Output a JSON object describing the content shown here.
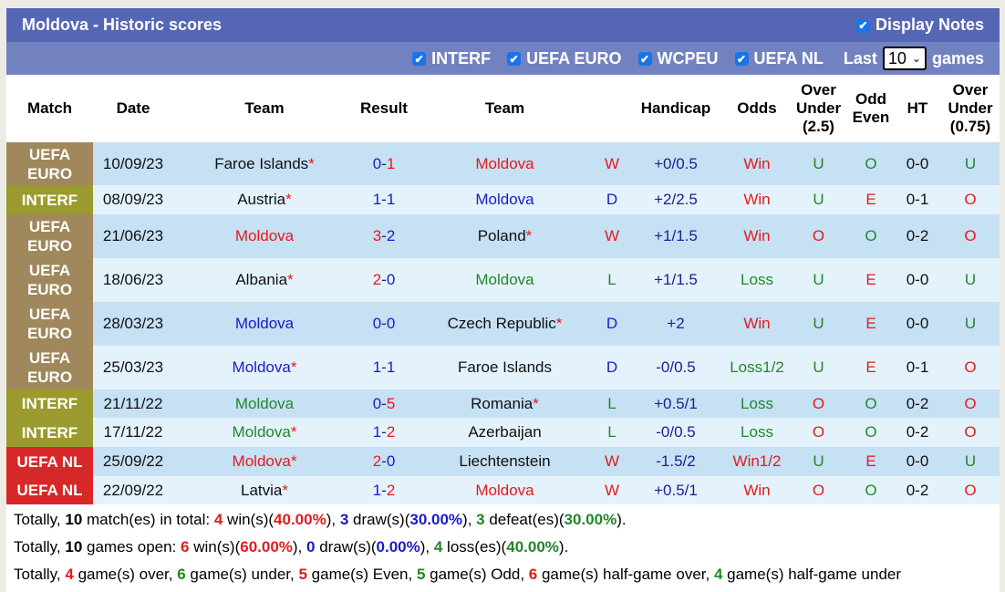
{
  "title": "Moldova - Historic scores",
  "display_notes": "Display Notes",
  "filters": [
    "INTERF",
    "UEFA EURO",
    "WCPEU",
    "UEFA NL"
  ],
  "last_label": "Last",
  "games_label": "games",
  "last_value": "10",
  "colors": {
    "UEFA EURO": "#a0885c",
    "INTERF": "#9a9a2e",
    "UEFA NL": "#d62828",
    "red": "#e41b1b",
    "blue": "#1b1bc8",
    "green": "#23862a"
  },
  "columns": [
    "Match",
    "Date",
    "Team",
    "Result",
    "Team",
    "",
    "Handicap",
    "Odds",
    "Over Under (2.5)",
    "Odd Even",
    "HT",
    "Over Under (0.75)"
  ],
  "rows": [
    {
      "match": "UEFA EURO",
      "date": "10/09/23",
      "home": "Faroe Islands",
      "home_star": true,
      "home_color": "black",
      "hs": "0",
      "hs_c": "blue",
      "as": "1",
      "as_c": "red",
      "away": "Moldova",
      "away_star": false,
      "away_color": "red",
      "wdl": "W",
      "wdl_c": "red",
      "hcp": "+0/0.5",
      "odds": "Win",
      "odds_c": "red",
      "ou": "U",
      "ou_c": "green",
      "oe": "O",
      "oe_c": "green",
      "ht": "0-0",
      "ou2": "U",
      "ou2_c": "green"
    },
    {
      "match": "INTERF",
      "date": "08/09/23",
      "home": "Austria",
      "home_star": true,
      "home_color": "black",
      "hs": "1",
      "hs_c": "blue",
      "as": "1",
      "as_c": "blue",
      "away": "Moldova",
      "away_star": false,
      "away_color": "blue",
      "wdl": "D",
      "wdl_c": "blue",
      "hcp": "+2/2.5",
      "odds": "Win",
      "odds_c": "red",
      "ou": "U",
      "ou_c": "green",
      "oe": "E",
      "oe_c": "red",
      "ht": "0-1",
      "ou2": "O",
      "ou2_c": "red"
    },
    {
      "match": "UEFA EURO",
      "date": "21/06/23",
      "home": "Moldova",
      "home_star": false,
      "home_color": "red",
      "hs": "3",
      "hs_c": "red",
      "as": "2",
      "as_c": "blue",
      "away": "Poland",
      "away_star": true,
      "away_color": "black",
      "wdl": "W",
      "wdl_c": "red",
      "hcp": "+1/1.5",
      "odds": "Win",
      "odds_c": "red",
      "ou": "O",
      "ou_c": "red",
      "oe": "O",
      "oe_c": "green",
      "ht": "0-2",
      "ou2": "O",
      "ou2_c": "red"
    },
    {
      "match": "UEFA EURO",
      "date": "18/06/23",
      "home": "Albania",
      "home_star": true,
      "home_color": "black",
      "hs": "2",
      "hs_c": "red",
      "as": "0",
      "as_c": "blue",
      "away": "Moldova",
      "away_star": false,
      "away_color": "green",
      "wdl": "L",
      "wdl_c": "green",
      "hcp": "+1/1.5",
      "odds": "Loss",
      "odds_c": "green",
      "ou": "U",
      "ou_c": "green",
      "oe": "E",
      "oe_c": "red",
      "ht": "0-0",
      "ou2": "U",
      "ou2_c": "green"
    },
    {
      "match": "UEFA EURO",
      "date": "28/03/23",
      "home": "Moldova",
      "home_star": false,
      "home_color": "blue",
      "hs": "0",
      "hs_c": "blue",
      "as": "0",
      "as_c": "blue",
      "away": "Czech Republic",
      "away_star": true,
      "away_color": "black",
      "wdl": "D",
      "wdl_c": "blue",
      "hcp": "+2",
      "odds": "Win",
      "odds_c": "red",
      "ou": "U",
      "ou_c": "green",
      "oe": "E",
      "oe_c": "red",
      "ht": "0-0",
      "ou2": "U",
      "ou2_c": "green"
    },
    {
      "match": "UEFA EURO",
      "date": "25/03/23",
      "home": "Moldova",
      "home_star": true,
      "home_color": "blue",
      "hs": "1",
      "hs_c": "blue",
      "as": "1",
      "as_c": "blue",
      "away": "Faroe Islands",
      "away_star": false,
      "away_color": "black",
      "wdl": "D",
      "wdl_c": "blue",
      "hcp": "-0/0.5",
      "odds": "Loss1/2",
      "odds_c": "green",
      "ou": "U",
      "ou_c": "green",
      "oe": "E",
      "oe_c": "red",
      "ht": "0-1",
      "ou2": "O",
      "ou2_c": "red"
    },
    {
      "match": "INTERF",
      "date": "21/11/22",
      "home": "Moldova",
      "home_star": false,
      "home_color": "green",
      "hs": "0",
      "hs_c": "blue",
      "as": "5",
      "as_c": "red",
      "away": "Romania",
      "away_star": true,
      "away_color": "black",
      "wdl": "L",
      "wdl_c": "green",
      "hcp": "+0.5/1",
      "odds": "Loss",
      "odds_c": "green",
      "ou": "O",
      "ou_c": "red",
      "oe": "O",
      "oe_c": "green",
      "ht": "0-2",
      "ou2": "O",
      "ou2_c": "red"
    },
    {
      "match": "INTERF",
      "date": "17/11/22",
      "home": "Moldova",
      "home_star": true,
      "home_color": "green",
      "hs": "1",
      "hs_c": "blue",
      "as": "2",
      "as_c": "red",
      "away": "Azerbaijan",
      "away_star": false,
      "away_color": "black",
      "wdl": "L",
      "wdl_c": "green",
      "hcp": "-0/0.5",
      "odds": "Loss",
      "odds_c": "green",
      "ou": "O",
      "ou_c": "red",
      "oe": "O",
      "oe_c": "green",
      "ht": "0-2",
      "ou2": "O",
      "ou2_c": "red"
    },
    {
      "match": "UEFA NL",
      "date": "25/09/22",
      "home": "Moldova",
      "home_star": true,
      "home_color": "red",
      "hs": "2",
      "hs_c": "red",
      "as": "0",
      "as_c": "blue",
      "away": "Liechtenstein",
      "away_star": false,
      "away_color": "black",
      "wdl": "W",
      "wdl_c": "red",
      "hcp": "-1.5/2",
      "odds": "Win1/2",
      "odds_c": "red",
      "ou": "U",
      "ou_c": "green",
      "oe": "E",
      "oe_c": "red",
      "ht": "0-0",
      "ou2": "U",
      "ou2_c": "green"
    },
    {
      "match": "UEFA NL",
      "date": "22/09/22",
      "home": "Latvia",
      "home_star": true,
      "home_color": "black",
      "hs": "1",
      "hs_c": "blue",
      "as": "2",
      "as_c": "red",
      "away": "Moldova",
      "away_star": false,
      "away_color": "red",
      "wdl": "W",
      "wdl_c": "red",
      "hcp": "+0.5/1",
      "odds": "Win",
      "odds_c": "red",
      "ou": "O",
      "ou_c": "red",
      "oe": "O",
      "oe_c": "green",
      "ht": "0-2",
      "ou2": "O",
      "ou2_c": "red"
    }
  ],
  "summary": [
    [
      [
        "Totally, ",
        ""
      ],
      [
        "10",
        "b"
      ],
      [
        " match(es) in total: ",
        ""
      ],
      [
        "4",
        "red"
      ],
      [
        " win(s)(",
        ""
      ],
      [
        "40.00%",
        "red"
      ],
      [
        "), ",
        ""
      ],
      [
        "3",
        "blue"
      ],
      [
        " draw(s)(",
        ""
      ],
      [
        "30.00%",
        "blue"
      ],
      [
        "), ",
        ""
      ],
      [
        "3",
        "green"
      ],
      [
        " defeat(es)(",
        ""
      ],
      [
        "30.00%",
        "green"
      ],
      [
        ").",
        ""
      ]
    ],
    [
      [
        "Totally, ",
        ""
      ],
      [
        "10",
        "b"
      ],
      [
        " games open: ",
        ""
      ],
      [
        "6",
        "red"
      ],
      [
        " win(s)(",
        ""
      ],
      [
        "60.00%",
        "red"
      ],
      [
        "), ",
        ""
      ],
      [
        "0",
        "blue"
      ],
      [
        " draw(s)(",
        ""
      ],
      [
        "0.00%",
        "blue"
      ],
      [
        "), ",
        ""
      ],
      [
        "4",
        "green"
      ],
      [
        " loss(es)(",
        ""
      ],
      [
        "40.00%",
        "green"
      ],
      [
        ").",
        ""
      ]
    ],
    [
      [
        "Totally, ",
        ""
      ],
      [
        "4",
        "red"
      ],
      [
        " game(s) over, ",
        ""
      ],
      [
        "6",
        "green"
      ],
      [
        " game(s) under, ",
        ""
      ],
      [
        "5",
        "red"
      ],
      [
        " game(s) Even, ",
        ""
      ],
      [
        "5",
        "green"
      ],
      [
        " game(s) Odd, ",
        ""
      ],
      [
        "6",
        "red"
      ],
      [
        " game(s) half-game over, ",
        ""
      ],
      [
        "4",
        "green"
      ],
      [
        " game(s) half-game under",
        ""
      ]
    ]
  ]
}
